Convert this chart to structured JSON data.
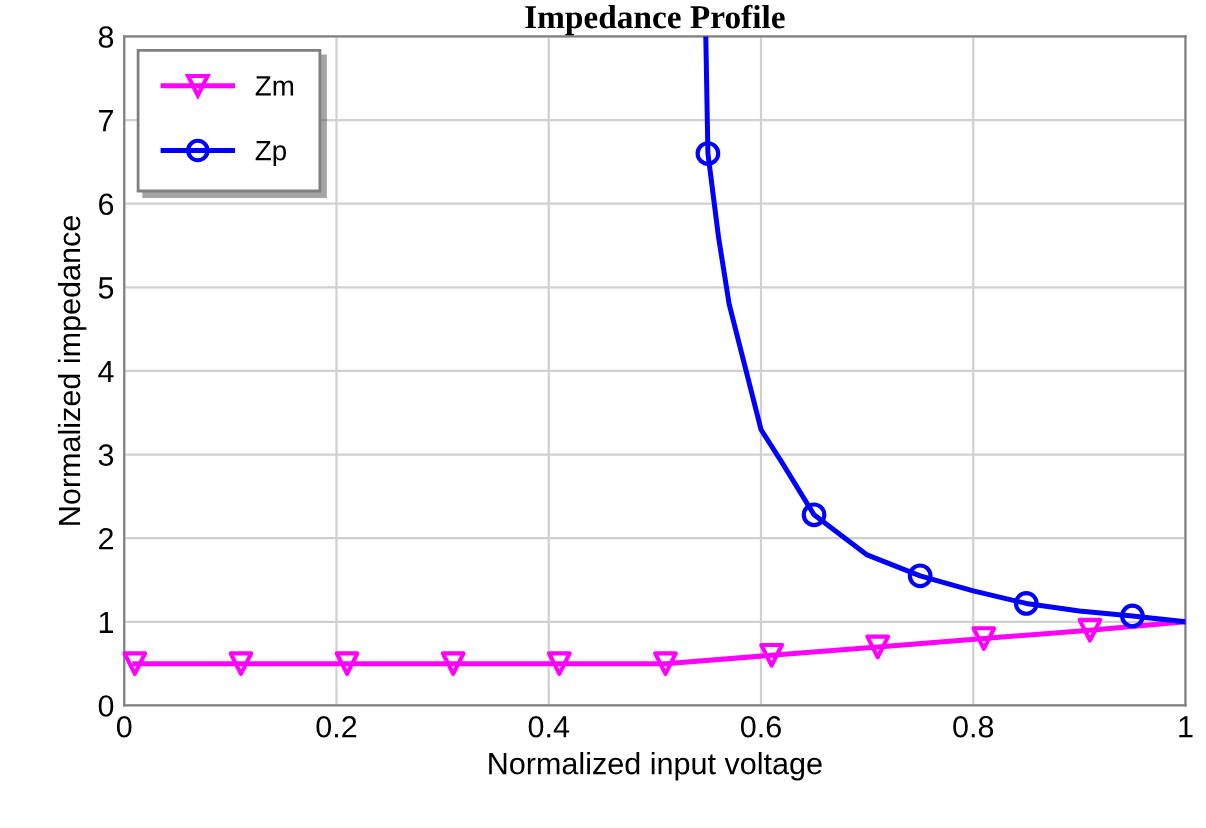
{
  "chart_data": {
    "type": "line",
    "title": "Impedance Profile",
    "xlabel": "Normalized input voltage",
    "ylabel": "Normalized impedance",
    "series": [
      {
        "name": "Zm",
        "color": "#ff00ff",
        "x": [
          0.01,
          0.51,
          0.61,
          0.71,
          0.81,
          0.91,
          1.0
        ],
        "values": [
          0.5,
          0.5,
          0.6,
          0.7,
          0.8,
          0.9,
          1.0
        ]
      },
      {
        "type": "scatter",
        "color": "#ff00ff",
        "marker": "triangle",
        "x": [
          0.01,
          0.11,
          0.21,
          0.31,
          0.41,
          0.51,
          0.61,
          0.71,
          0.81,
          0.91
        ],
        "values": [
          0.5,
          0.5,
          0.5,
          0.5,
          0.5,
          0.5,
          0.6,
          0.7,
          0.8,
          0.9
        ]
      },
      {
        "name": "Zp",
        "color": "#0000ff",
        "x": [
          0.548,
          0.55,
          0.56,
          0.57,
          0.58,
          0.6,
          0.62,
          0.65,
          0.7,
          0.75,
          0.8,
          0.85,
          0.9,
          0.95,
          1.0
        ],
        "values": [
          8,
          6.6,
          5.6,
          4.8,
          4.3,
          3.3,
          2.9,
          2.28,
          1.8,
          1.55,
          1.37,
          1.22,
          1.13,
          1.07,
          1.0
        ]
      },
      {
        "type": "scatter",
        "color": "#0000ff",
        "marker": "circle",
        "x": [
          0.55,
          0.65,
          0.75,
          0.85,
          0.95
        ],
        "values": [
          6.6,
          2.28,
          1.55,
          1.22,
          1.07
        ]
      }
    ],
    "xlim": [
      0,
      1
    ],
    "xticks": [
      0,
      0.2,
      0.4,
      0.6,
      0.8,
      1
    ],
    "ylim": [
      0,
      8
    ],
    "yticks": [
      0,
      1,
      2,
      3,
      4,
      5,
      6,
      7,
      8
    ],
    "grid": true,
    "legend": "top left"
  }
}
